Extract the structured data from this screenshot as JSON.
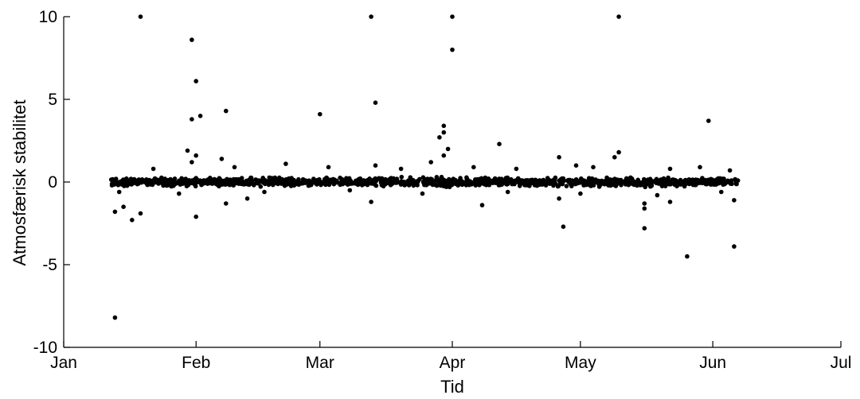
{
  "chart_data": {
    "type": "scatter",
    "xlabel": "Tid",
    "ylabel": "Atmosfærisk stabilitet",
    "xlim": [
      "2012-01-01",
      "2012-07-01"
    ],
    "ylim": [
      -10,
      10
    ],
    "x_ticks": [
      {
        "date": "2012-01-01",
        "label": "Jan"
      },
      {
        "date": "2012-02-01",
        "label": "Feb"
      },
      {
        "date": "2012-03-01",
        "label": "Mar"
      },
      {
        "date": "2012-04-01",
        "label": "Apr"
      },
      {
        "date": "2012-05-01",
        "label": "May"
      },
      {
        "date": "2012-06-01",
        "label": "Jun"
      },
      {
        "date": "2012-07-01",
        "label": "Jul"
      }
    ],
    "y_ticks": [
      {
        "value": -10,
        "label": "-10"
      },
      {
        "value": -5,
        "label": "-5"
      },
      {
        "value": 0,
        "label": "0"
      },
      {
        "value": 5,
        "label": "5"
      },
      {
        "value": 10,
        "label": "10"
      }
    ],
    "grid": false,
    "marker_color": "#000000",
    "series": [
      {
        "points": [
          [
            "2012-01-13",
            -8.2
          ],
          [
            "2012-01-19",
            10
          ],
          [
            "2012-01-31",
            8.6
          ],
          [
            "2012-02-01",
            6.1
          ],
          [
            "2012-01-31",
            3.8
          ],
          [
            "2012-02-02",
            4.0
          ],
          [
            "2012-02-08",
            4.3
          ],
          [
            "2012-03-01",
            4.1
          ],
          [
            "2012-03-13",
            10
          ],
          [
            "2012-03-14",
            4.8
          ],
          [
            "2012-04-01",
            10
          ],
          [
            "2012-04-01",
            8.0
          ],
          [
            "2012-05-10",
            10
          ],
          [
            "2012-05-31",
            3.7
          ],
          [
            "2012-01-13",
            -1.8
          ],
          [
            "2012-01-17",
            -2.3
          ],
          [
            "2012-01-19",
            -1.9
          ],
          [
            "2012-02-01",
            -2.1
          ],
          [
            "2012-02-08",
            -1.3
          ],
          [
            "2012-03-13",
            -1.2
          ],
          [
            "2012-04-08",
            -1.4
          ],
          [
            "2012-04-27",
            -2.7
          ],
          [
            "2012-05-16",
            -1.6
          ],
          [
            "2012-05-16",
            -2.8
          ],
          [
            "2012-05-26",
            -4.5
          ],
          [
            "2012-06-06",
            -3.9
          ],
          [
            "2012-06-06",
            -1.1
          ],
          [
            "2012-01-30",
            1.9
          ],
          [
            "2012-01-31",
            1.2
          ],
          [
            "2012-02-01",
            1.6
          ],
          [
            "2012-02-07",
            1.4
          ],
          [
            "2012-03-30",
            3.4
          ],
          [
            "2012-03-30",
            3.0
          ],
          [
            "2012-03-29",
            2.7
          ],
          [
            "2012-03-31",
            2.0
          ],
          [
            "2012-03-30",
            1.6
          ],
          [
            "2012-04-12",
            2.3
          ],
          [
            "2012-04-26",
            1.5
          ],
          [
            "2012-05-10",
            1.8
          ],
          [
            "2012-05-09",
            1.5
          ],
          [
            "2012-02-22",
            1.1
          ],
          [
            "2012-03-14",
            1.0
          ],
          [
            "2012-03-27",
            1.2
          ],
          [
            "2012-04-30",
            1.0
          ],
          [
            "2012-05-16",
            -1.3
          ],
          [
            "2012-04-26",
            -1.0
          ],
          [
            "2012-02-13",
            -1.0
          ],
          [
            "2012-01-15",
            -1.5
          ],
          [
            "2012-05-22",
            -1.2
          ],
          [
            "2012-05-29",
            0.9
          ],
          [
            "2012-01-22",
            0.8
          ],
          [
            "2012-02-10",
            0.9
          ],
          [
            "2012-03-03",
            0.9
          ],
          [
            "2012-03-20",
            0.8
          ],
          [
            "2012-04-06",
            0.9
          ],
          [
            "2012-04-16",
            0.8
          ],
          [
            "2012-05-04",
            0.9
          ],
          [
            "2012-05-22",
            0.8
          ],
          [
            "2012-06-05",
            0.7
          ],
          [
            "2012-01-14",
            -0.6
          ],
          [
            "2012-01-28",
            -0.7
          ],
          [
            "2012-02-17",
            -0.6
          ],
          [
            "2012-03-08",
            -0.5
          ],
          [
            "2012-03-25",
            -0.7
          ],
          [
            "2012-04-14",
            -0.6
          ],
          [
            "2012-05-01",
            -0.7
          ],
          [
            "2012-05-19",
            -0.8
          ],
          [
            "2012-06-03",
            -0.6
          ]
        ]
      }
    ],
    "dense_band": {
      "x_start": "2012-01-12",
      "x_end": "2012-06-07",
      "y_center": 0,
      "y_half_width": 0.35,
      "count": 1400
    }
  }
}
